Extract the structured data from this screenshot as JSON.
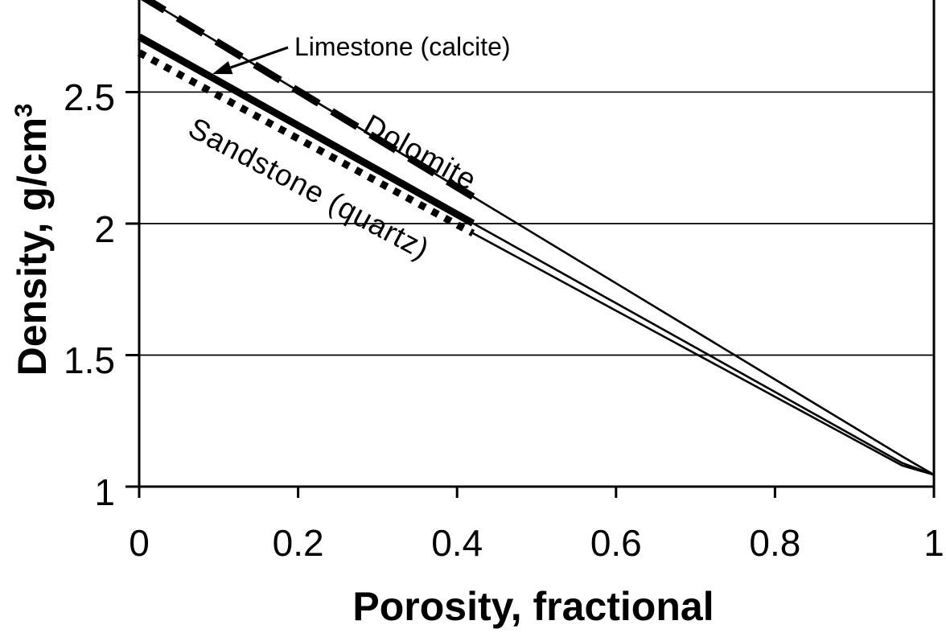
{
  "page": {
    "background": "#ffffff",
    "foreground": "#000000"
  },
  "chart_data": {
    "type": "line",
    "title": "",
    "xlabel": "Porosity, fractional",
    "ylabel": {
      "main": "Density, g/cm",
      "sup": "3"
    },
    "xlim": [
      0,
      1
    ],
    "ylim": [
      1,
      2.85
    ],
    "grid": {
      "horizontal": true,
      "vertical": false,
      "gridline_values": [
        1.5,
        2,
        2.5
      ]
    },
    "legend": "none (labels annotated on lines)",
    "line_color": "#000000",
    "x_ticks": {
      "values": [
        0,
        0.2,
        0.4,
        0.6,
        0.8,
        1
      ],
      "labels": [
        "0",
        "0.2",
        "0.4",
        "0.6",
        "0.8",
        "1"
      ]
    },
    "y_ticks": {
      "values": [
        1,
        1.5,
        2,
        2.5
      ],
      "labels": [
        "1",
        "1.5",
        "2",
        "2.5"
      ]
    },
    "series": [
      {
        "name": "Dolomite",
        "style": "thick-dashed-over-thin-solid",
        "matrix_density_at_phi0": 2.87,
        "points": [
          [
            0,
            2.87
          ],
          [
            0.96,
            1.115
          ],
          [
            1,
            1.045
          ]
        ],
        "thick_segment_range": [
          0,
          0.42
        ]
      },
      {
        "name": "Limestone (calcite)",
        "style": "thick-solid-then-thin",
        "matrix_density_at_phi0": 2.71,
        "points": [
          [
            0,
            2.71
          ],
          [
            0.96,
            1.09
          ],
          [
            1,
            1.045
          ]
        ],
        "thick_segment_range": [
          0,
          0.42
        ]
      },
      {
        "name": "Sandstone (quartz)",
        "style": "thick-dotted-then-thin",
        "matrix_density_at_phi0": 2.65,
        "points": [
          [
            0,
            2.65
          ],
          [
            0.96,
            1.08
          ],
          [
            1,
            1.045
          ]
        ],
        "thick_segment_range": [
          0,
          0.42
        ]
      }
    ],
    "annotations": [
      {
        "id": "limestone-label",
        "text": "Limestone (calcite)",
        "arrow": true
      },
      {
        "id": "dolomite-label",
        "text": "Dolomite",
        "arrow": false
      },
      {
        "id": "sandstone-label",
        "text": "Sandstone (quartz)",
        "arrow": false
      }
    ],
    "convergence_point": [
      1,
      1.045
    ]
  }
}
